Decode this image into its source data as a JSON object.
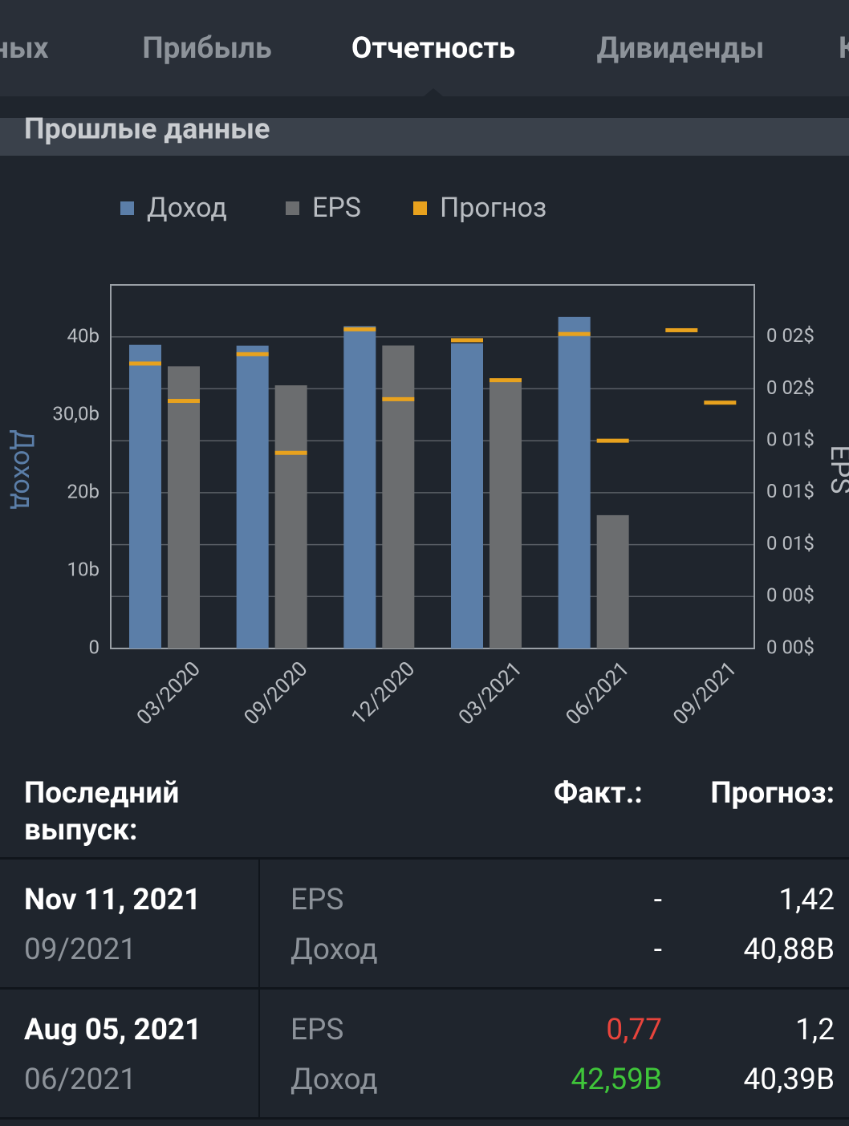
{
  "tabs": [
    "ных",
    "Прибыль",
    "Отчетность",
    "Дивиденды",
    "К"
  ],
  "section_title": "Прошлые данные",
  "chart_data": {
    "type": "bar",
    "categories": [
      "03/2020",
      "09/2020",
      "12/2020",
      "03/2021",
      "06/2021",
      "09/2021"
    ],
    "series": [
      {
        "name": "Доход",
        "color": "#5b7ea8",
        "values": [
          39.0,
          38.9,
          41.4,
          39.2,
          42.59,
          null
        ]
      },
      {
        "name": "EPS",
        "color": "#6b6d6f",
        "axis": "y2",
        "values": [
          1.63,
          1.52,
          1.75,
          1.55,
          0.77,
          null
        ]
      },
      {
        "name": "Прогноз",
        "color": "#e8a21e",
        "values": [
          36.6,
          37.8,
          41.0,
          39.6,
          40.39,
          40.88
        ],
        "eps_values": [
          1.43,
          1.13,
          1.44,
          1.55,
          1.2,
          1.42
        ]
      }
    ],
    "ylabel": "Доход",
    "y2label": "EPS",
    "ylim": [
      0,
      46.7
    ],
    "yticks": [
      0,
      {
        "value": 10,
        "label": "10b"
      },
      {
        "value": 20,
        "label": "20b"
      },
      {
        "value": 30,
        "label": "30,0b"
      },
      {
        "value": 40,
        "label": "40b"
      }
    ],
    "y2lim": [
      0,
      2.1
    ],
    "y2ticks": [
      {
        "value": 0,
        "label": "0 00$"
      },
      {
        "value": 0.3,
        "label": "0 00$"
      },
      {
        "value": 0.6,
        "label": "0 01$"
      },
      {
        "value": 0.9,
        "label": "0 01$"
      },
      {
        "value": 1.2,
        "label": "0 01$"
      },
      {
        "value": 1.5,
        "label": "0 02$"
      },
      {
        "value": 1.8,
        "label": "0 02$"
      }
    ],
    "grid": true
  },
  "table": {
    "header": [
      "Последний выпуск:",
      "Факт.:",
      "Прогноз:"
    ],
    "rows": [
      {
        "date": "Nov 11, 2021",
        "period": "09/2021",
        "lines": [
          [
            "EPS",
            "-",
            "1,42"
          ],
          [
            "Доход",
            "-",
            "40,88B"
          ]
        ]
      },
      {
        "date": "Aug 05, 2021",
        "period": "06/2021",
        "lines": [
          [
            "EPS",
            "0,77",
            "1,2"
          ],
          [
            "Доход",
            "42,59B",
            "40,39B"
          ]
        ]
      }
    ]
  }
}
